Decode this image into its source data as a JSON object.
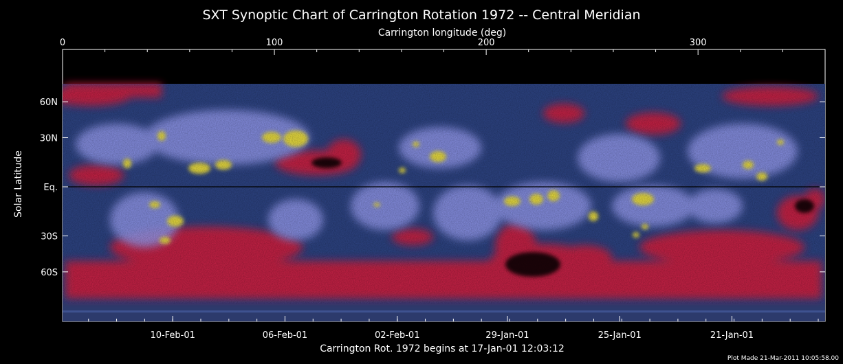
{
  "chart_data": {
    "type": "heatmap",
    "title": "SXT Synoptic Chart of Carrington Rotation 1972 -- Central Meridian",
    "x_top_label": "Carrington longitude (deg)",
    "x_top_ticks": [
      0,
      100,
      200,
      300
    ],
    "x_top_range": [
      0,
      360
    ],
    "y_label": "Solar Latitude",
    "y_ticks": [
      {
        "label": "60N",
        "sin_lat": 0.866
      },
      {
        "label": "30N",
        "sin_lat": 0.5
      },
      {
        "label": "Eq.",
        "sin_lat": 0
      },
      {
        "label": "30S",
        "sin_lat": -0.5
      },
      {
        "label": "60S",
        "sin_lat": -0.866
      }
    ],
    "x_bottom_ticks": [
      {
        "label": "10-Feb-01",
        "longitude": 52
      },
      {
        "label": "06-Feb-01",
        "longitude": 105
      },
      {
        "label": "02-Feb-01",
        "longitude": 158
      },
      {
        "label": "29-Jan-01",
        "longitude": 210
      },
      {
        "label": "25-Jan-01",
        "longitude": 263
      },
      {
        "label": "21-Jan-01",
        "longitude": 316
      }
    ],
    "x_bottom_label": "Carrington Rot. 1972 begins at 17-Jan-01 12:03:12",
    "footer": "Plot Made 21-Mar-2011 10:05:58.00",
    "colors": {
      "background": "#000000",
      "quiet": "#2a3f7a",
      "coronal_hole": "#c81e3a",
      "bright": "#8a90e0",
      "active": "#d8cc3a"
    }
  }
}
